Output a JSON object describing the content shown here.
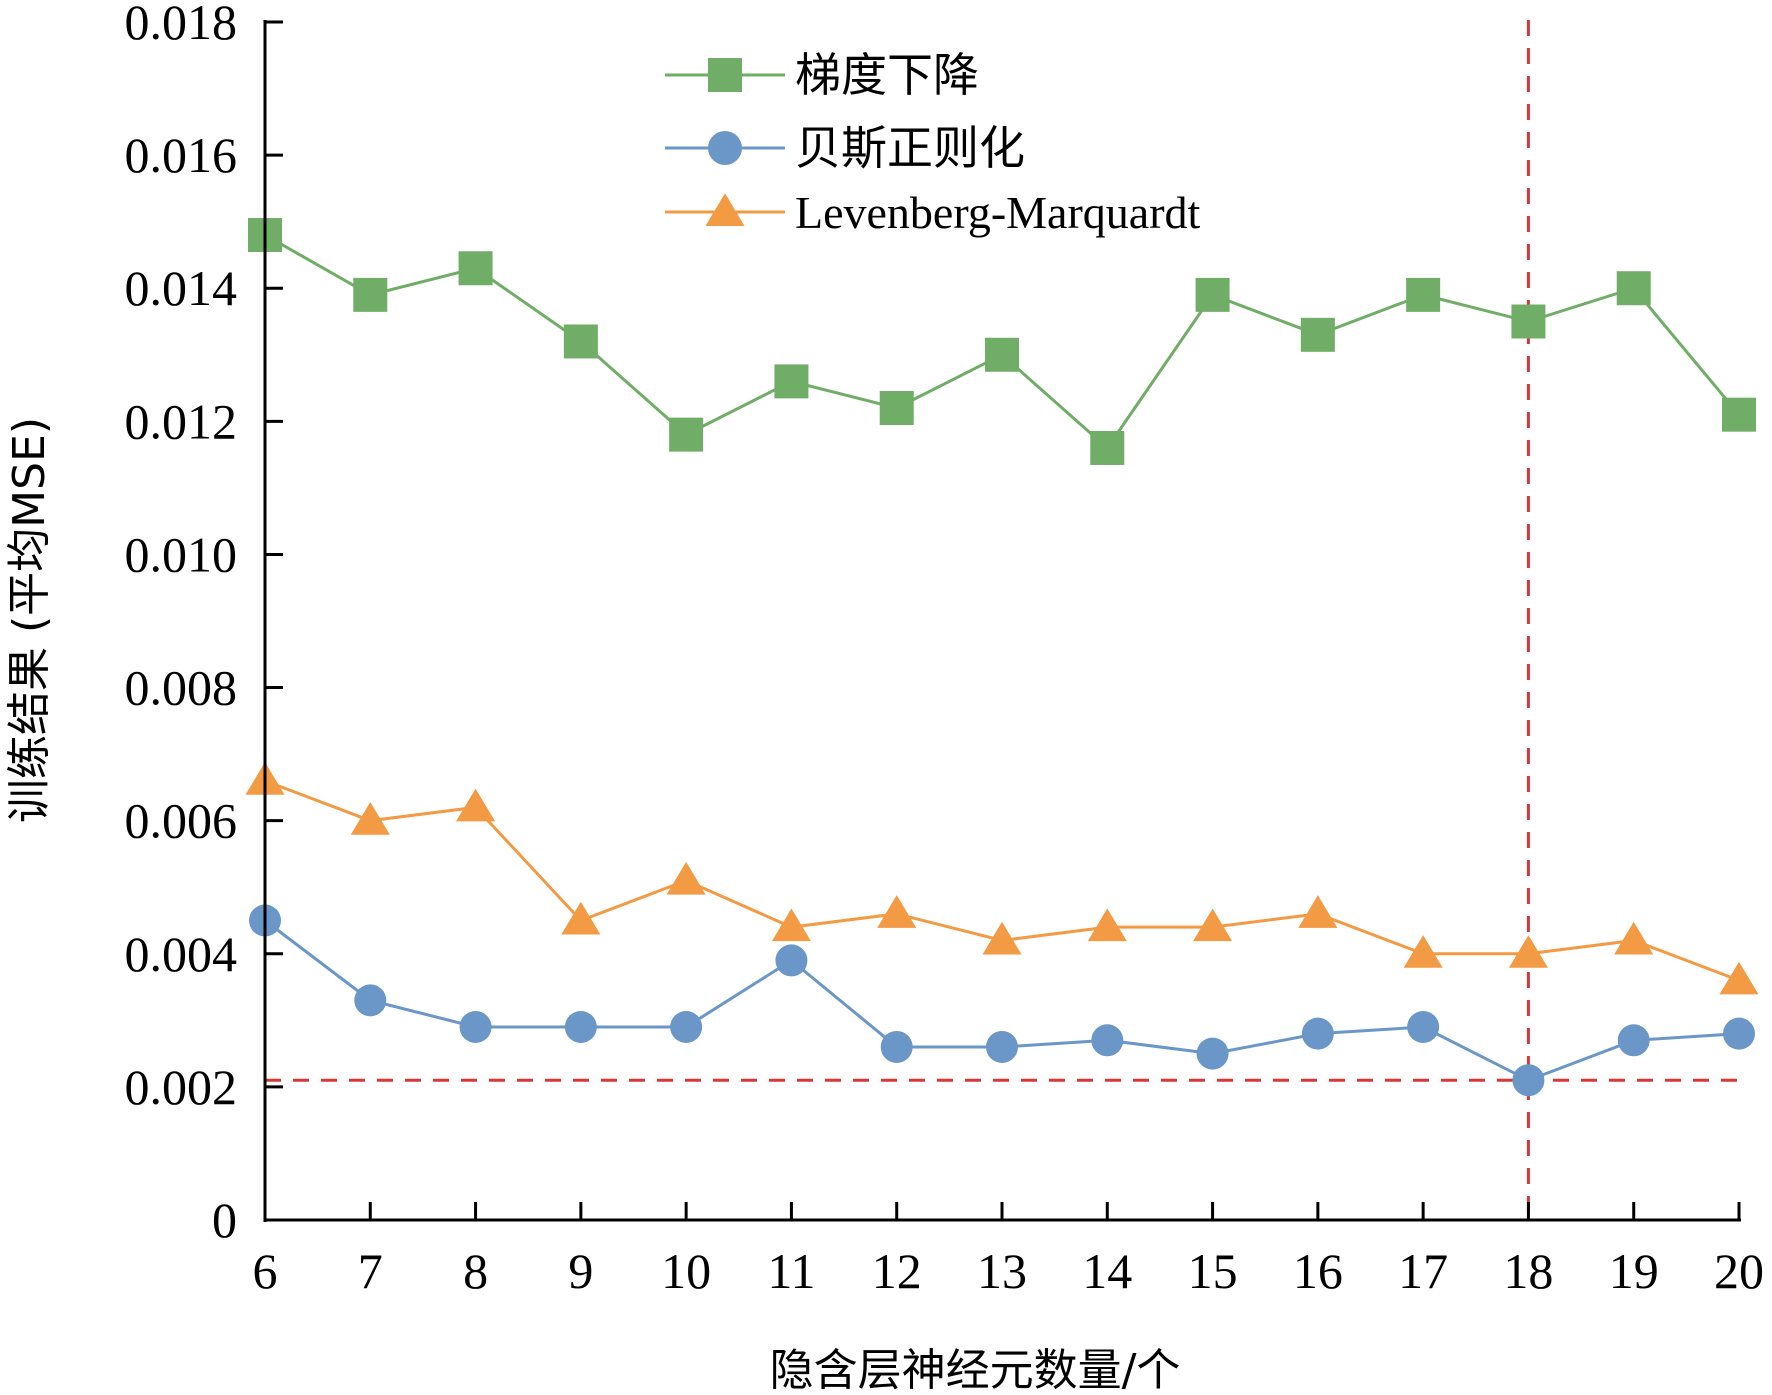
{
  "chart_data": {
    "type": "line",
    "xlabel": "隐含层神经元数量/个",
    "ylabel": "训练结果 (平均MSE)",
    "x": [
      6,
      7,
      8,
      9,
      10,
      11,
      12,
      13,
      14,
      15,
      16,
      17,
      18,
      19,
      20
    ],
    "x_tick_labels": [
      "6",
      "7",
      "8",
      "9",
      "10",
      "11",
      "12",
      "13",
      "14",
      "15",
      "16",
      "17",
      "18",
      "19",
      "20"
    ],
    "y_ticks": [
      0,
      0.002,
      0.004,
      0.006,
      0.008,
      0.01,
      0.012,
      0.014,
      0.016,
      0.018
    ],
    "y_tick_labels": [
      "0",
      "0.002",
      "0.004",
      "0.006",
      "0.008",
      "0.010",
      "0.012",
      "0.014",
      "0.016",
      "0.018"
    ],
    "ylim": [
      0,
      0.018
    ],
    "xlim": [
      6,
      20
    ],
    "grid": false,
    "legend_position": "top-center",
    "series": [
      {
        "name": "梯度下降",
        "color": "#70AD66",
        "marker": "square",
        "values": [
          0.0148,
          0.0139,
          0.0143,
          0.0132,
          0.0118,
          0.0126,
          0.0122,
          0.013,
          0.0116,
          0.0139,
          0.0133,
          0.0139,
          0.0135,
          0.014,
          0.0121
        ]
      },
      {
        "name": "贝斯正则化",
        "color": "#6A96C8",
        "marker": "circle",
        "values": [
          0.0045,
          0.0033,
          0.0029,
          0.0029,
          0.0029,
          0.0039,
          0.0026,
          0.0026,
          0.0027,
          0.0025,
          0.0028,
          0.0029,
          0.0021,
          0.0027,
          0.0028
        ]
      },
      {
        "name": "Levenberg-Marquardt",
        "color": "#F39A45",
        "marker": "triangle",
        "values": [
          0.0066,
          0.006,
          0.0062,
          0.0045,
          0.0051,
          0.0044,
          0.0046,
          0.0042,
          0.0044,
          0.0044,
          0.0046,
          0.004,
          0.004,
          0.0042,
          0.0036
        ]
      }
    ],
    "reference_lines": [
      {
        "orientation": "vertical",
        "value": 18,
        "color": "#D9383A",
        "style": "dashed"
      },
      {
        "orientation": "horizontal",
        "value": 0.0021,
        "color": "#D9383A",
        "style": "dashed"
      }
    ]
  }
}
